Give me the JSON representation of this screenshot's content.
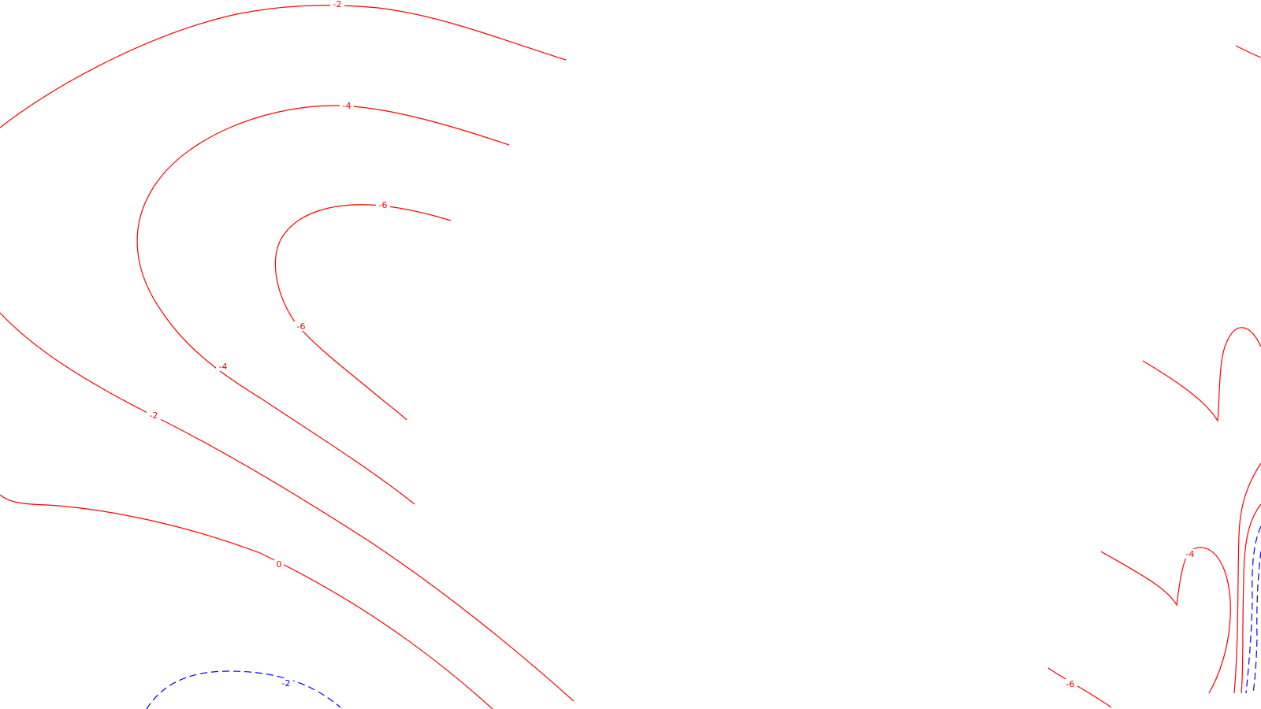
{
  "chart_data": {
    "type": "contour",
    "colors": {
      "positive_or_zero": "#ff0000",
      "negative_dashed": "#0000ff",
      "background": "#ffffff"
    },
    "contour_labels": [
      "-2",
      "-4",
      "-6",
      "-6",
      "-4",
      "-2",
      "0",
      "-2",
      "-4",
      "-6"
    ]
  }
}
